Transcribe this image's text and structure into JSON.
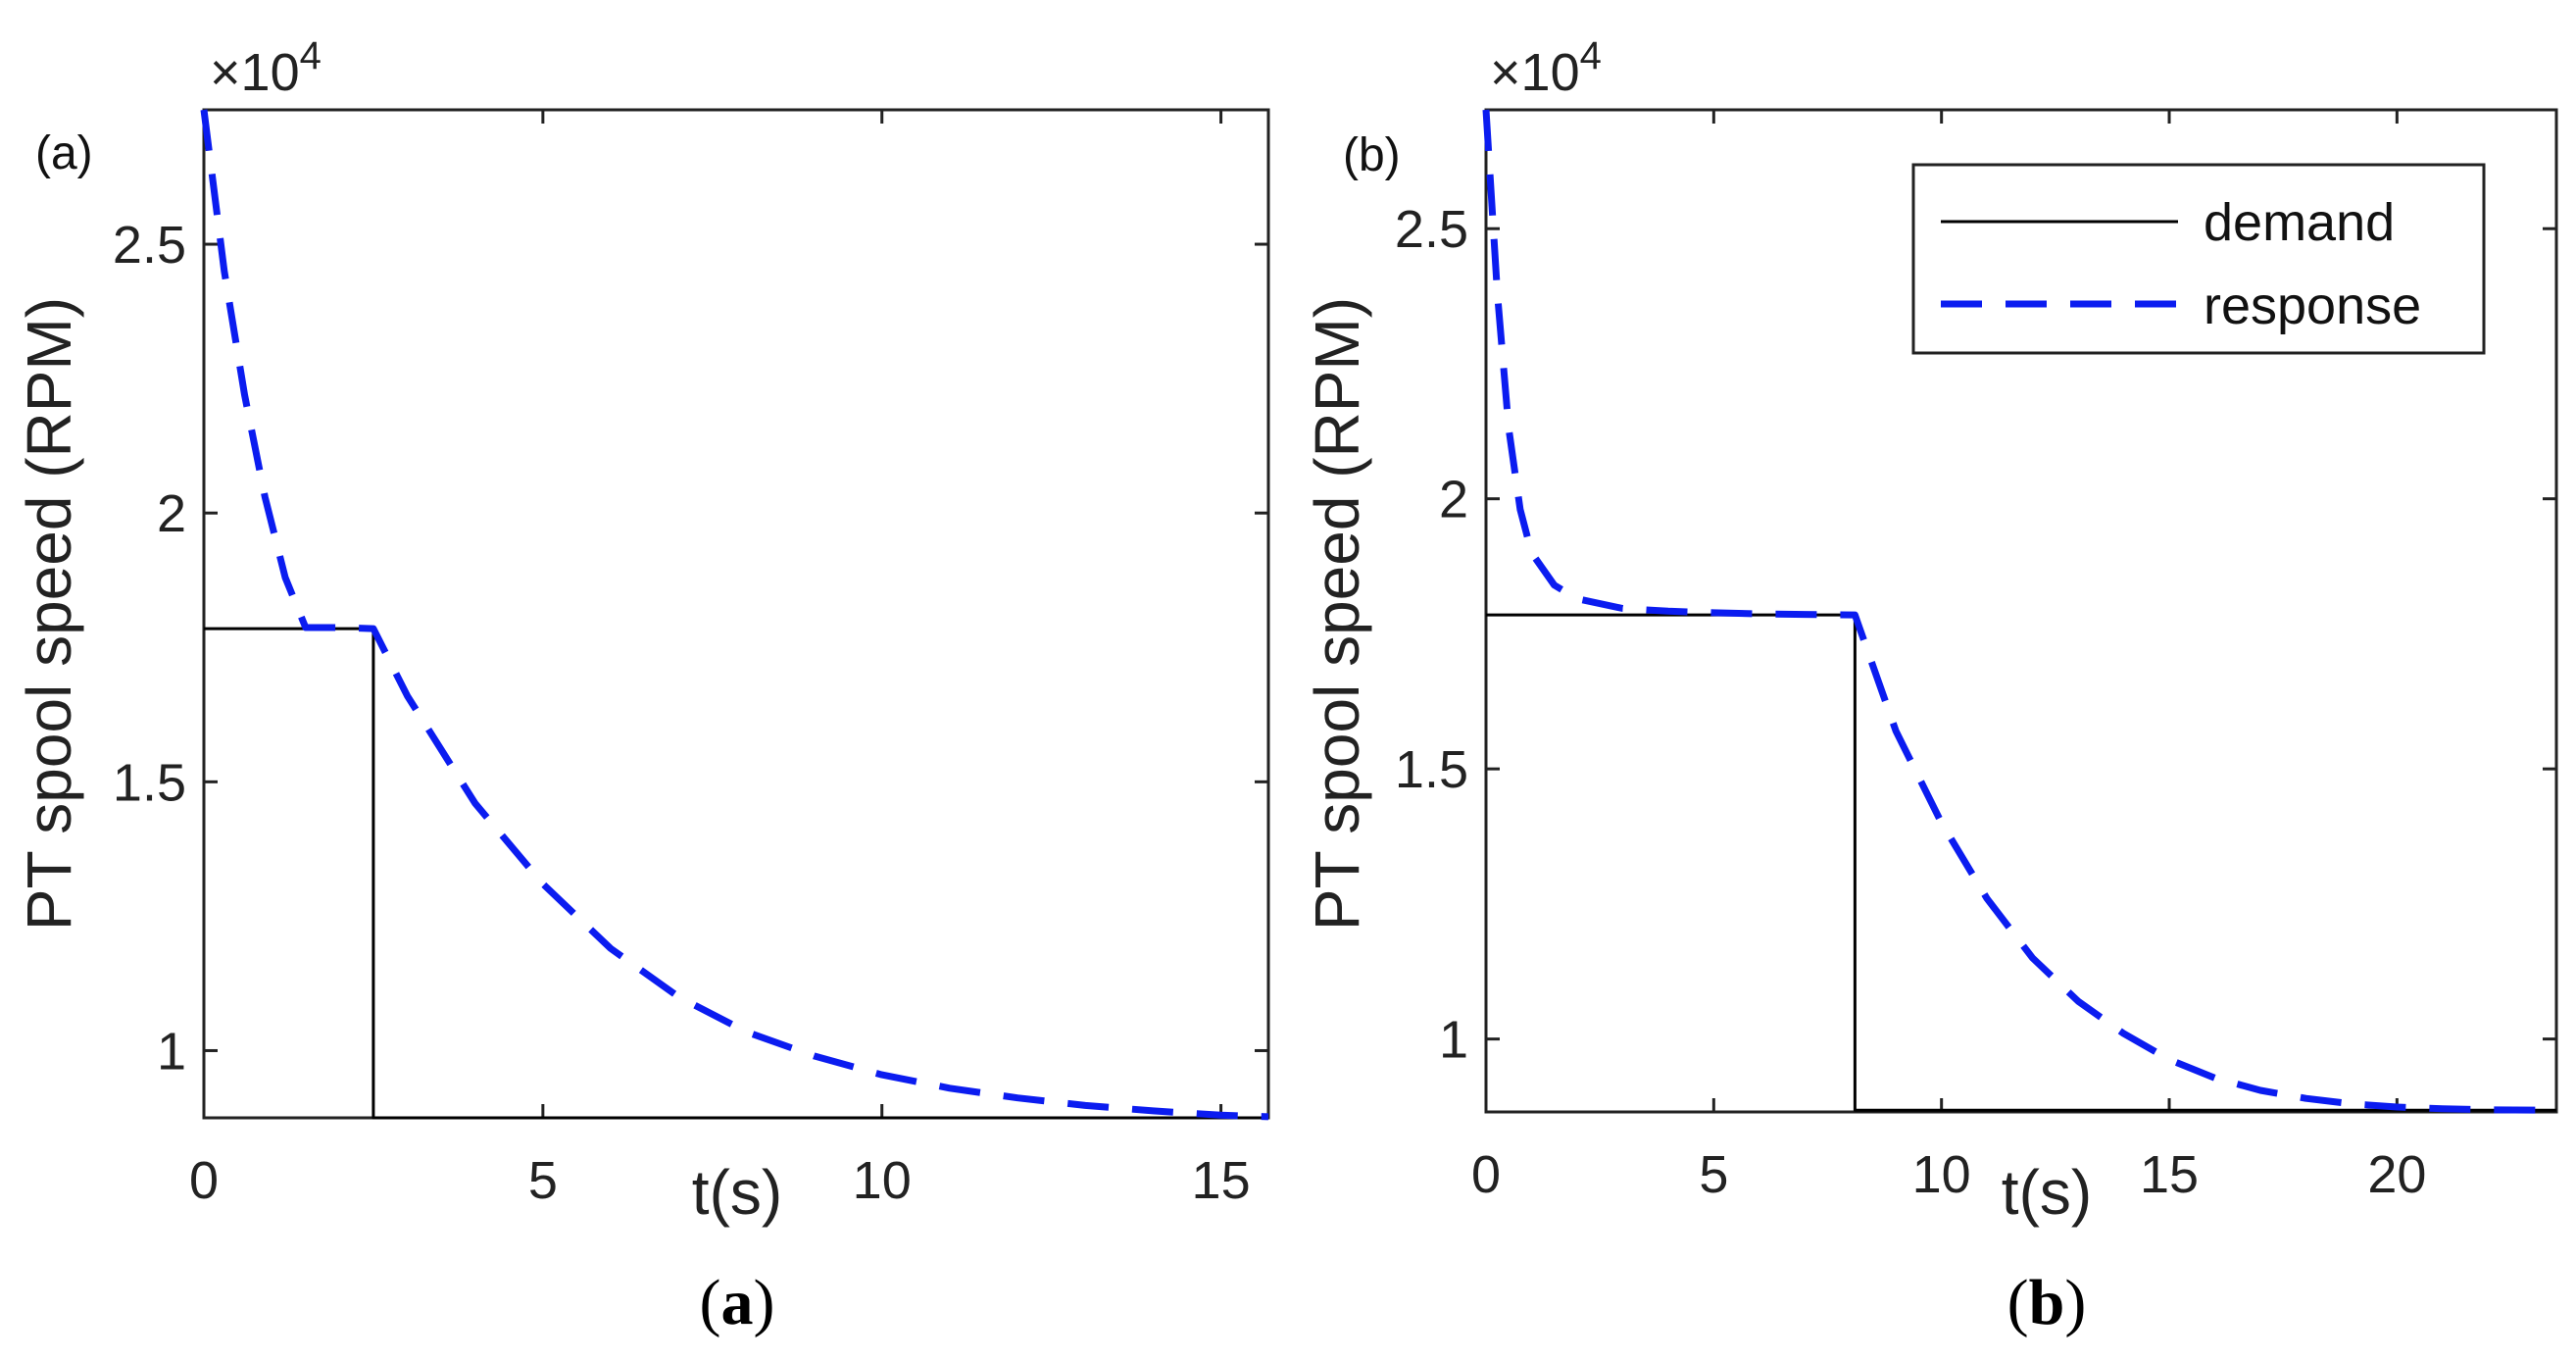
{
  "figure": {
    "caption_a_open": "(",
    "caption_a_letter": "a",
    "caption_a_close": ")",
    "caption_b_open": "(",
    "caption_b_letter": "b",
    "caption_b_close": ")"
  },
  "colors": {
    "demand": "#000000",
    "response": "#0b1cf0",
    "axis": "#222222"
  },
  "chart_data": [
    {
      "type": "line",
      "panel_tag": "(a)",
      "sci_base": "×10",
      "sci_exp": "4",
      "ylabel": "PT spool speed (RPM)",
      "xlabel": "t(s)",
      "xlim": [
        0,
        15.7
      ],
      "ylim": [
        0.875,
        2.75
      ],
      "xticks": [
        0,
        5,
        10,
        15
      ],
      "xtick_labels": [
        "0",
        "5",
        "10",
        "15"
      ],
      "yticks": [
        1,
        1.5,
        2,
        2.5
      ],
      "ytick_labels": [
        "1",
        "1.5",
        "2",
        "2.5"
      ],
      "legend": [],
      "series": [
        {
          "name": "demand",
          "style": "solid",
          "x": [
            0,
            2.5,
            2.5,
            15.7
          ],
          "y": [
            1.785,
            1.785,
            0.875,
            0.875
          ]
        },
        {
          "name": "response",
          "style": "dashed",
          "x": [
            0,
            0.3,
            0.6,
            0.9,
            1.2,
            1.5,
            2.0,
            2.5,
            3.0,
            4.0,
            5.0,
            6.0,
            7.0,
            8.0,
            9.0,
            10.0,
            11.0,
            12.0,
            13.0,
            14.0,
            15.0,
            15.7
          ],
          "y": [
            2.75,
            2.45,
            2.22,
            2.03,
            1.88,
            1.787,
            1.787,
            1.785,
            1.66,
            1.46,
            1.31,
            1.19,
            1.1,
            1.035,
            0.99,
            0.955,
            0.93,
            0.912,
            0.898,
            0.888,
            0.88,
            0.877
          ]
        }
      ]
    },
    {
      "type": "line",
      "panel_tag": "(b)",
      "sci_base": "×10",
      "sci_exp": "4",
      "ylabel": "PT spool speed (RPM)",
      "xlabel": "t(s)",
      "xlim": [
        0,
        23.5
      ],
      "ylim": [
        0.865,
        2.72
      ],
      "xticks": [
        0,
        5,
        10,
        15,
        20
      ],
      "xtick_labels": [
        "0",
        "5",
        "10",
        "15",
        "20"
      ],
      "yticks": [
        1,
        1.5,
        2,
        2.5
      ],
      "ytick_labels": [
        "1",
        "1.5",
        "2",
        "2.5"
      ],
      "legend": [
        {
          "label": "demand",
          "style": "solid"
        },
        {
          "label": "response",
          "style": "dashed"
        }
      ],
      "series": [
        {
          "name": "demand",
          "style": "solid",
          "x": [
            0,
            8.1,
            8.1,
            23.5
          ],
          "y": [
            1.785,
            1.785,
            0.868,
            0.868
          ]
        },
        {
          "name": "response",
          "style": "dashed",
          "x": [
            0,
            0.25,
            0.5,
            0.75,
            1.0,
            1.5,
            2.0,
            3.0,
            4.0,
            5.0,
            6.0,
            7.0,
            8.1,
            9.0,
            10.0,
            11.0,
            12.0,
            13.0,
            14.0,
            15.0,
            16.0,
            17.0,
            18.0,
            19.0,
            20.0,
            21.0,
            22.0,
            23.5
          ],
          "y": [
            2.72,
            2.38,
            2.13,
            1.98,
            1.9,
            1.84,
            1.815,
            1.797,
            1.792,
            1.789,
            1.787,
            1.786,
            1.785,
            1.57,
            1.4,
            1.26,
            1.15,
            1.07,
            1.01,
            0.962,
            0.928,
            0.905,
            0.89,
            0.88,
            0.874,
            0.871,
            0.869,
            0.868
          ]
        }
      ]
    }
  ]
}
